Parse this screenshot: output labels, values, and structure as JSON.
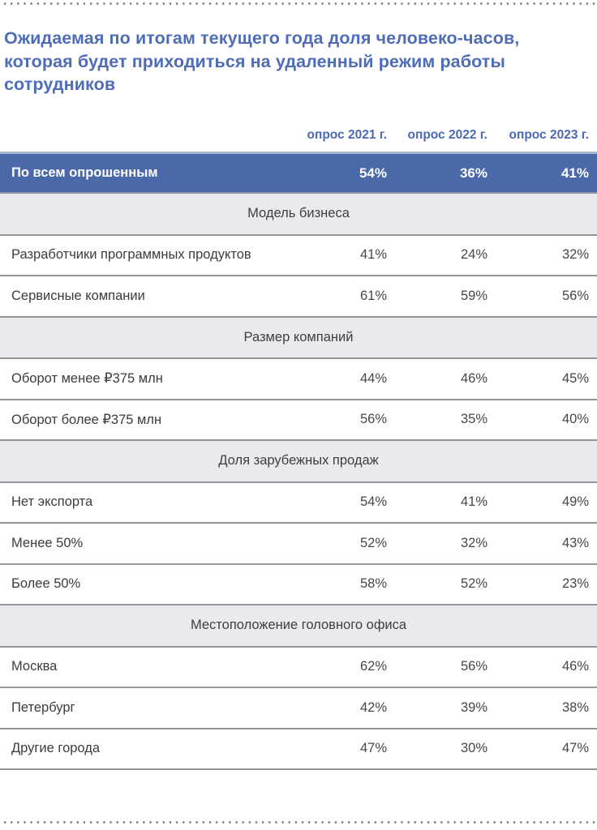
{
  "figure": {
    "title": "Ожидаемая по итогам текущего года доля человеко-часов, которая будет приходиться на удаленный режим работы сотрудников"
  },
  "table": {
    "columns": [
      "опрос 2021 г.",
      "опрос 2022 г.",
      "опрос 2023 г."
    ],
    "total_row": {
      "label": "По всем опрошенным",
      "values": [
        "54%",
        "36%",
        "41%"
      ]
    },
    "sections": [
      {
        "header": "Модель бизнеса",
        "rows": [
          {
            "label": "Разработчики программных продуктов",
            "values": [
              "41%",
              "24%",
              "32%"
            ]
          },
          {
            "label": "Сервисные компании",
            "values": [
              "61%",
              "59%",
              "56%"
            ]
          }
        ]
      },
      {
        "header": "Размер компаний",
        "rows": [
          {
            "label": "Оборот менее ₽375 млн",
            "values": [
              "44%",
              "46%",
              "45%"
            ]
          },
          {
            "label": "Оборот более ₽375 млн",
            "values": [
              "56%",
              "35%",
              "40%"
            ]
          }
        ]
      },
      {
        "header": "Доля зарубежных продаж",
        "rows": [
          {
            "label": "Нет экспорта",
            "values": [
              "54%",
              "41%",
              "49%"
            ]
          },
          {
            "label": "Менее 50%",
            "values": [
              "52%",
              "32%",
              "43%"
            ]
          },
          {
            "label": "Более 50%",
            "values": [
              "58%",
              "52%",
              "23%"
            ]
          }
        ]
      },
      {
        "header": "Местоположение головного офиса",
        "rows": [
          {
            "label": "Москва",
            "values": [
              "62%",
              "56%",
              "46%"
            ]
          },
          {
            "label": "Петербург",
            "values": [
              "42%",
              "39%",
              "38%"
            ]
          },
          {
            "label": "Другие города",
            "values": [
              "47%",
              "30%",
              "47%"
            ]
          }
        ]
      }
    ]
  },
  "colors": {
    "accent_blue_text": "#4e6db8",
    "total_row_bg": "#4b68a8",
    "total_row_top_border": "#a9b3d2",
    "section_bg": "#e8eaed",
    "separator_grey": "#95959c",
    "body_text": "#3b3b40",
    "dot_grey": "#83838a"
  },
  "chart_data": {
    "type": "table",
    "title": "Ожидаемая по итогам текущего года доля человеко-часов, которая будет приходиться на удаленный режим работы сотрудников",
    "columns": [
      "опрос 2021 г.",
      "опрос 2022 г.",
      "опрос 2023 г."
    ],
    "unit": "%",
    "rows": [
      {
        "group": "По всем опрошенным",
        "label": "По всем опрошенным",
        "values": [
          54,
          36,
          41
        ]
      },
      {
        "group": "Модель бизнеса",
        "label": "Разработчики программных продуктов",
        "values": [
          41,
          24,
          32
        ]
      },
      {
        "group": "Модель бизнеса",
        "label": "Сервисные компании",
        "values": [
          61,
          59,
          56
        ]
      },
      {
        "group": "Размер компаний",
        "label": "Оборот менее ₽375 млн",
        "values": [
          44,
          46,
          45
        ]
      },
      {
        "group": "Размер компаний",
        "label": "Оборот более ₽375 млн",
        "values": [
          56,
          35,
          40
        ]
      },
      {
        "group": "Доля зарубежных продаж",
        "label": "Нет экспорта",
        "values": [
          54,
          41,
          49
        ]
      },
      {
        "group": "Доля зарубежных продаж",
        "label": "Менее 50%",
        "values": [
          52,
          32,
          43
        ]
      },
      {
        "group": "Доля зарубежных продаж",
        "label": "Более 50%",
        "values": [
          58,
          52,
          23
        ]
      },
      {
        "group": "Местоположение головного офиса",
        "label": "Москва",
        "values": [
          62,
          56,
          46
        ]
      },
      {
        "group": "Местоположение головного офиса",
        "label": "Петербург",
        "values": [
          42,
          39,
          38
        ]
      },
      {
        "group": "Местоположение головного офиса",
        "label": "Другие города",
        "values": [
          47,
          30,
          47
        ]
      }
    ]
  }
}
